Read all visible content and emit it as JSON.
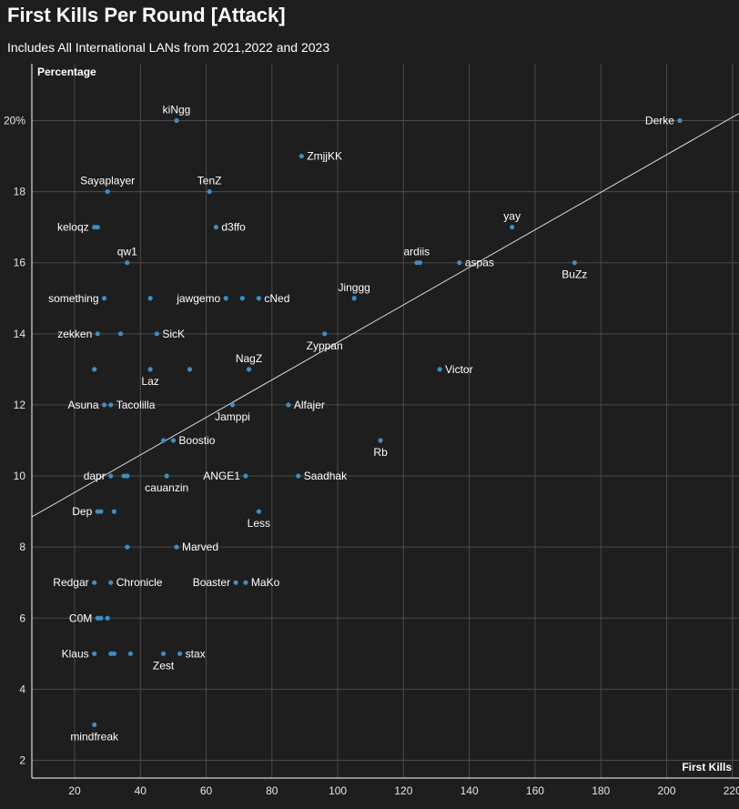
{
  "title": "First Kills Per Round [Attack]",
  "subtitle": "Includes All International LANs from 2021,2022 and 2023",
  "colors": {
    "background": "#1e1e1e",
    "point": "#3d8ec4",
    "grid": "#4a4a4a",
    "trend": "#d9d9d9"
  },
  "chart_data": {
    "type": "scatter",
    "xlabel": "First Kills",
    "ylabel": "Percentage",
    "xlim": [
      7,
      222
    ],
    "ylim": [
      1.5,
      21.6
    ],
    "x_ticks": [
      20,
      40,
      60,
      80,
      100,
      120,
      140,
      160,
      180,
      200,
      220
    ],
    "y_ticks": [
      {
        "value": 2,
        "label": "2"
      },
      {
        "value": 4,
        "label": "4"
      },
      {
        "value": 6,
        "label": "6"
      },
      {
        "value": 8,
        "label": "8"
      },
      {
        "value": 10,
        "label": "10"
      },
      {
        "value": 12,
        "label": "12"
      },
      {
        "value": 14,
        "label": "14"
      },
      {
        "value": 16,
        "label": "16"
      },
      {
        "value": 18,
        "label": "18"
      },
      {
        "value": 20,
        "label": "20%"
      }
    ],
    "grid": true,
    "trendline": {
      "x": [
        7,
        222
      ],
      "y": [
        8.85,
        20.2
      ]
    },
    "points": [
      {
        "x": 51,
        "y": 20,
        "label": "kiNgg",
        "pos": "above"
      },
      {
        "x": 204,
        "y": 20,
        "label": "Derke",
        "pos": "left"
      },
      {
        "x": 89,
        "y": 19,
        "label": "ZmjjKK",
        "pos": "right"
      },
      {
        "x": 30,
        "y": 18,
        "label": "Sayaplayer",
        "pos": "above"
      },
      {
        "x": 61,
        "y": 18,
        "label": "TenZ",
        "pos": "above"
      },
      {
        "x": 26,
        "y": 17,
        "label": "keloqz",
        "pos": "left"
      },
      {
        "x": 27,
        "y": 17,
        "label": "",
        "pos": "none"
      },
      {
        "x": 63,
        "y": 17,
        "label": "d3ffo",
        "pos": "right"
      },
      {
        "x": 153,
        "y": 17,
        "label": "yay",
        "pos": "above"
      },
      {
        "x": 36,
        "y": 16,
        "label": "qw1",
        "pos": "above"
      },
      {
        "x": 124,
        "y": 16,
        "label": "ardiis",
        "pos": "above"
      },
      {
        "x": 125,
        "y": 16,
        "label": "",
        "pos": "none"
      },
      {
        "x": 137,
        "y": 16,
        "label": "aspas",
        "pos": "right"
      },
      {
        "x": 172,
        "y": 16,
        "label": "BuZz",
        "pos": "below"
      },
      {
        "x": 29,
        "y": 15,
        "label": "something",
        "pos": "left"
      },
      {
        "x": 43,
        "y": 15,
        "label": "",
        "pos": "none"
      },
      {
        "x": 66,
        "y": 15,
        "label": "jawgemo",
        "pos": "left"
      },
      {
        "x": 71,
        "y": 15,
        "label": "",
        "pos": "none"
      },
      {
        "x": 76,
        "y": 15,
        "label": "cNed",
        "pos": "right"
      },
      {
        "x": 105,
        "y": 15,
        "label": "Jinggg",
        "pos": "above"
      },
      {
        "x": 27,
        "y": 14,
        "label": "zekken",
        "pos": "left"
      },
      {
        "x": 34,
        "y": 14,
        "label": "",
        "pos": "none"
      },
      {
        "x": 45,
        "y": 14,
        "label": "SicK",
        "pos": "right"
      },
      {
        "x": 96,
        "y": 14,
        "label": "Zyppan",
        "pos": "below"
      },
      {
        "x": 26,
        "y": 13,
        "label": "",
        "pos": "none"
      },
      {
        "x": 43,
        "y": 13,
        "label": "Laz",
        "pos": "below"
      },
      {
        "x": 55,
        "y": 13,
        "label": "",
        "pos": "none"
      },
      {
        "x": 73,
        "y": 13,
        "label": "NagZ",
        "pos": "above"
      },
      {
        "x": 131,
        "y": 13,
        "label": "Victor",
        "pos": "right"
      },
      {
        "x": 29,
        "y": 12,
        "label": "Asuna",
        "pos": "left"
      },
      {
        "x": 31,
        "y": 12,
        "label": "Tacolilla",
        "pos": "right"
      },
      {
        "x": 68,
        "y": 12,
        "label": "Jamppi",
        "pos": "below"
      },
      {
        "x": 85,
        "y": 12,
        "label": "Alfajer",
        "pos": "right"
      },
      {
        "x": 47,
        "y": 11,
        "label": "",
        "pos": "none"
      },
      {
        "x": 50,
        "y": 11,
        "label": "Boostio",
        "pos": "right"
      },
      {
        "x": 113,
        "y": 11,
        "label": "Rb",
        "pos": "below"
      },
      {
        "x": 31,
        "y": 10,
        "label": "dapr",
        "pos": "left"
      },
      {
        "x": 35,
        "y": 10,
        "label": "",
        "pos": "none"
      },
      {
        "x": 36,
        "y": 10,
        "label": "",
        "pos": "none"
      },
      {
        "x": 48,
        "y": 10,
        "label": "cauanzin",
        "pos": "below"
      },
      {
        "x": 72,
        "y": 10,
        "label": "ANGE1",
        "pos": "left"
      },
      {
        "x": 88,
        "y": 10,
        "label": "Saadhak",
        "pos": "right"
      },
      {
        "x": 27,
        "y": 9,
        "label": "Dep",
        "pos": "left"
      },
      {
        "x": 28,
        "y": 9,
        "label": "",
        "pos": "none"
      },
      {
        "x": 32,
        "y": 9,
        "label": "",
        "pos": "none"
      },
      {
        "x": 76,
        "y": 9,
        "label": "Less",
        "pos": "below"
      },
      {
        "x": 36,
        "y": 8,
        "label": "",
        "pos": "none"
      },
      {
        "x": 51,
        "y": 8,
        "label": "Marved",
        "pos": "right"
      },
      {
        "x": 26,
        "y": 7,
        "label": "Redgar",
        "pos": "left"
      },
      {
        "x": 31,
        "y": 7,
        "label": "Chronicle",
        "pos": "right"
      },
      {
        "x": 69,
        "y": 7,
        "label": "Boaster",
        "pos": "left"
      },
      {
        "x": 72,
        "y": 7,
        "label": "MaKo",
        "pos": "right"
      },
      {
        "x": 27,
        "y": 6,
        "label": "C0M",
        "pos": "left"
      },
      {
        "x": 28,
        "y": 6,
        "label": "",
        "pos": "none"
      },
      {
        "x": 30,
        "y": 6,
        "label": "",
        "pos": "none"
      },
      {
        "x": 26,
        "y": 5,
        "label": "Klaus",
        "pos": "left"
      },
      {
        "x": 31,
        "y": 5,
        "label": "",
        "pos": "none"
      },
      {
        "x": 32,
        "y": 5,
        "label": "",
        "pos": "none"
      },
      {
        "x": 37,
        "y": 5,
        "label": "",
        "pos": "none"
      },
      {
        "x": 47,
        "y": 5,
        "label": "Zest",
        "pos": "below"
      },
      {
        "x": 52,
        "y": 5,
        "label": "stax",
        "pos": "right"
      },
      {
        "x": 26,
        "y": 3,
        "label": "mindfreak",
        "pos": "below"
      }
    ]
  }
}
